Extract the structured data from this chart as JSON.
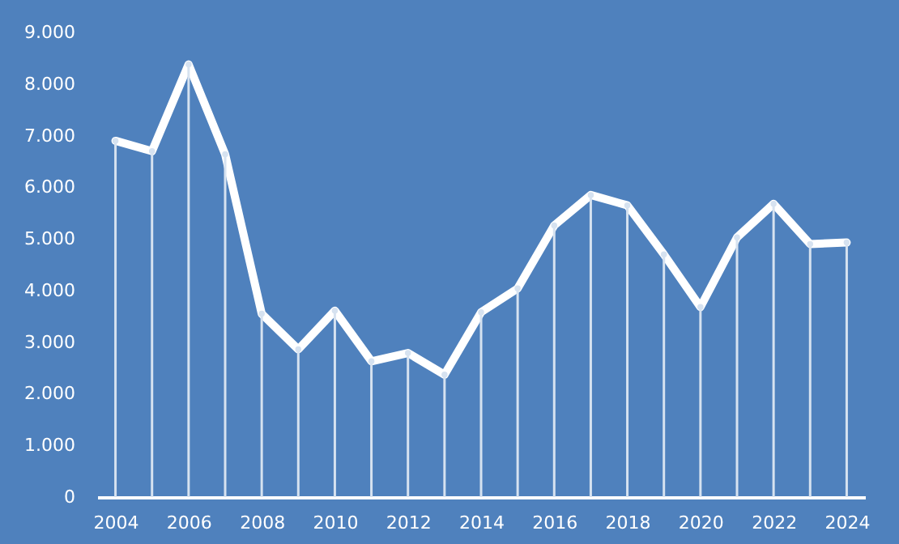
{
  "chart_data": {
    "type": "line",
    "x": [
      2004,
      2005,
      2006,
      2007,
      2008,
      2009,
      2010,
      2011,
      2012,
      2013,
      2014,
      2015,
      2016,
      2017,
      2018,
      2019,
      2020,
      2021,
      2022,
      2023,
      2024
    ],
    "series": [
      {
        "color": "#ffffff",
        "values": [
          6900,
          6700,
          8380,
          6640,
          3550,
          2860,
          3610,
          2630,
          2790,
          2370,
          3580,
          4040,
          5260,
          5850,
          5650,
          4700,
          3680,
          5030,
          5680,
          4900,
          4930
        ]
      },
      {
        "type": "lollipop",
        "color": "#d6e2f0",
        "values": [
          6900,
          6700,
          8380,
          6640,
          3550,
          2860,
          3610,
          2630,
          2790,
          2370,
          3580,
          4040,
          5260,
          5850,
          5650,
          4700,
          3680,
          5030,
          5680,
          4900,
          4930
        ]
      }
    ],
    "xlim": [
      2003.5,
      2024.5
    ],
    "xticks": [
      2004,
      2006,
      2008,
      2010,
      2012,
      2014,
      2016,
      2018,
      2020,
      2022,
      2024
    ],
    "ylim": [
      0,
      9000
    ],
    "yticks": [
      0,
      {
        "value": 1000,
        "label": "1.000"
      },
      {
        "value": 2000,
        "label": "2.000"
      },
      {
        "value": 3000,
        "label": "3.000"
      },
      {
        "value": 4000,
        "label": "4.000"
      },
      {
        "value": 5000,
        "label": "5.000"
      },
      {
        "value": 6000,
        "label": "6.000"
      },
      {
        "value": 7000,
        "label": "7.000"
      },
      {
        "value": 8000,
        "label": "8.000"
      },
      {
        "value": 9000,
        "label": "9.000"
      }
    ],
    "marker": "none",
    "line_style": "solid"
  }
}
